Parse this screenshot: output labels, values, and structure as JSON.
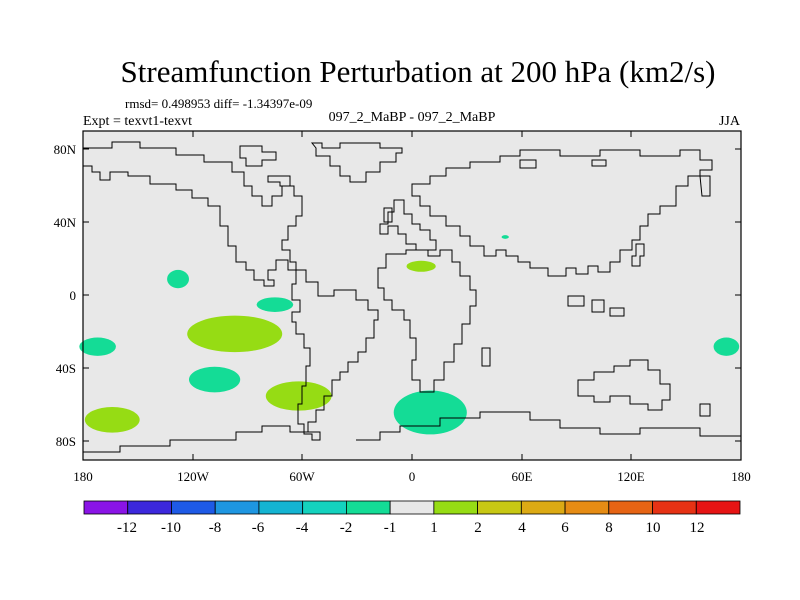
{
  "chart_data": {
    "type": "contour-map",
    "title": "Streamfunction Perturbation at 200 hPa (km2/s)",
    "stats_text": "rmsd= 0.498953 diff= -1.34397e-09",
    "left_label": "Expt = texvt1-texvt",
    "center_label": "097_2_MaBP - 097_2_MaBP",
    "right_label": "JJA",
    "lon_range": [
      -180,
      180
    ],
    "lat_range": [
      -90,
      90
    ],
    "x_tick_values": [
      -180,
      -120,
      -60,
      0,
      60,
      120,
      180
    ],
    "x_tick_labels": [
      "180",
      "120W",
      "60W",
      "0",
      "60E",
      "120E",
      "180"
    ],
    "y_tick_values": [
      80,
      40,
      0,
      -40,
      -80
    ],
    "y_tick_labels": [
      "80N",
      "40N",
      "0",
      "40S",
      "80S"
    ],
    "background_color": "#e8e8e8",
    "colorbar": {
      "colors": [
        "#8a14e6",
        "#3c28dc",
        "#1e5ae6",
        "#1e96e1",
        "#14b4d2",
        "#14d2be",
        "#14dc96",
        "#e8e8e8",
        "#96dc14",
        "#c8c814",
        "#dcaa14",
        "#e68c14",
        "#e66414",
        "#e63214",
        "#e61414"
      ],
      "labels": [
        "-12",
        "-10",
        "-8",
        "-6",
        "-4",
        "-2",
        "-1",
        "1",
        "2",
        "4",
        "6",
        "8",
        "10",
        "12"
      ]
    },
    "anomalies": [
      {
        "lon": -128,
        "lat": 9,
        "rlon": 6,
        "rlat": 5,
        "value": -1.5
      },
      {
        "lon": -75,
        "lat": -5,
        "rlon": 10,
        "rlat": 4,
        "value": -1.5
      },
      {
        "lon": -97,
        "lat": -21,
        "rlon": 26,
        "rlat": 10,
        "value": 1.5
      },
      {
        "lon": -172,
        "lat": -28,
        "rlon": 10,
        "rlat": 5,
        "value": -1.5
      },
      {
        "lon": -108,
        "lat": -46,
        "rlon": 14,
        "rlat": 7,
        "value": -1.5
      },
      {
        "lon": -62,
        "lat": -55,
        "rlon": 18,
        "rlat": 8,
        "value": 1.5
      },
      {
        "lon": -164,
        "lat": -68,
        "rlon": 15,
        "rlat": 7,
        "value": 1.5
      },
      {
        "lon": 5,
        "lat": 16,
        "rlon": 8,
        "rlat": 3,
        "value": 1.5
      },
      {
        "lon": 51,
        "lat": 32,
        "rlon": 2,
        "rlat": 1,
        "value": -1.5
      },
      {
        "lon": 10,
        "lat": -64,
        "rlon": 20,
        "rlat": 12,
        "value": -1.5
      },
      {
        "lon": 172,
        "lat": -28,
        "rlon": 7,
        "rlat": 5,
        "value": -1.5
      }
    ]
  }
}
